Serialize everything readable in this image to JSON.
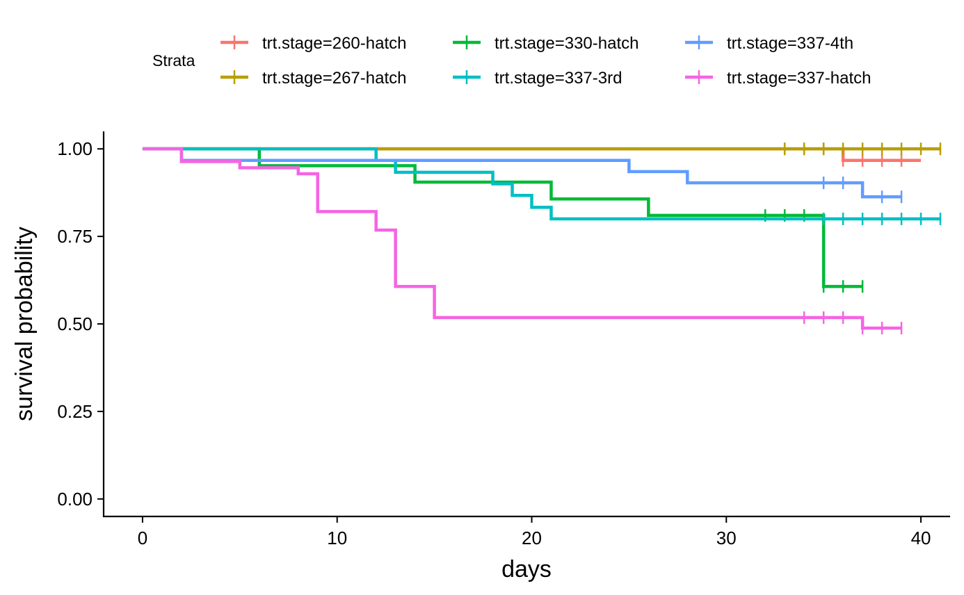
{
  "chart_data": {
    "type": "line",
    "step": "post",
    "title": "",
    "xlabel": "days",
    "ylabel": "survival probability",
    "xlim": [
      -2,
      41.5
    ],
    "ylim": [
      -0.05,
      1.05
    ],
    "xticks": [
      0,
      10,
      20,
      30,
      40
    ],
    "xtick_labels": [
      "0",
      "10",
      "20",
      "30",
      "40"
    ],
    "yticks": [
      0,
      0.25,
      0.5,
      0.75,
      1
    ],
    "ytick_labels": [
      "0.00",
      "0.25",
      "0.50",
      "0.75",
      "1.00"
    ],
    "grid": false,
    "legend": {
      "title": "Strata",
      "position": "top",
      "columns": 3
    },
    "series": [
      {
        "name": "trt.stage=260-hatch",
        "color": "#F8766D",
        "steps": [
          [
            0,
            1.0
          ],
          [
            36,
            0.967
          ],
          [
            40,
            0.967
          ]
        ],
        "censor": [
          33,
          34,
          35,
          36,
          37,
          38,
          39
        ]
      },
      {
        "name": "trt.stage=267-hatch",
        "color": "#B79F00",
        "steps": [
          [
            0,
            1.0
          ],
          [
            41,
            1.0
          ]
        ],
        "censor": [
          33,
          34,
          35,
          36,
          37,
          38,
          39,
          40,
          41
        ]
      },
      {
        "name": "trt.stage=330-hatch",
        "color": "#00BA38",
        "steps": [
          [
            0,
            1.0
          ],
          [
            6,
            0.952
          ],
          [
            14,
            0.905
          ],
          [
            21,
            0.857
          ],
          [
            26,
            0.81
          ],
          [
            35,
            0.607
          ],
          [
            37,
            0.607
          ]
        ],
        "censor": [
          32,
          33,
          34,
          35,
          36,
          37
        ]
      },
      {
        "name": "trt.stage=337-3rd",
        "color": "#00BFC4",
        "steps": [
          [
            0,
            1.0
          ],
          [
            12,
            0.967
          ],
          [
            13,
            0.933
          ],
          [
            18,
            0.9
          ],
          [
            19,
            0.867
          ],
          [
            20,
            0.833
          ],
          [
            21,
            0.8
          ],
          [
            41,
            0.8
          ]
        ],
        "censor": [
          35,
          36,
          37,
          38,
          39,
          40,
          41
        ]
      },
      {
        "name": "trt.stage=337-4th",
        "color": "#619CFF",
        "steps": [
          [
            0,
            1.0
          ],
          [
            2,
            0.967
          ],
          [
            25,
            0.935
          ],
          [
            28,
            0.903
          ],
          [
            37,
            0.863
          ],
          [
            39,
            0.863
          ]
        ],
        "censor": [
          35,
          36,
          38,
          39
        ]
      },
      {
        "name": "trt.stage=337-hatch",
        "color": "#F564E3",
        "steps": [
          [
            0,
            1.0
          ],
          [
            2,
            0.964
          ],
          [
            5,
            0.946
          ],
          [
            8,
            0.929
          ],
          [
            9,
            0.821
          ],
          [
            12,
            0.768
          ],
          [
            13,
            0.607
          ],
          [
            15,
            0.518
          ],
          [
            37,
            0.488
          ],
          [
            39,
            0.488
          ]
        ],
        "censor": [
          34,
          35,
          36,
          37,
          38,
          39
        ]
      }
    ]
  }
}
